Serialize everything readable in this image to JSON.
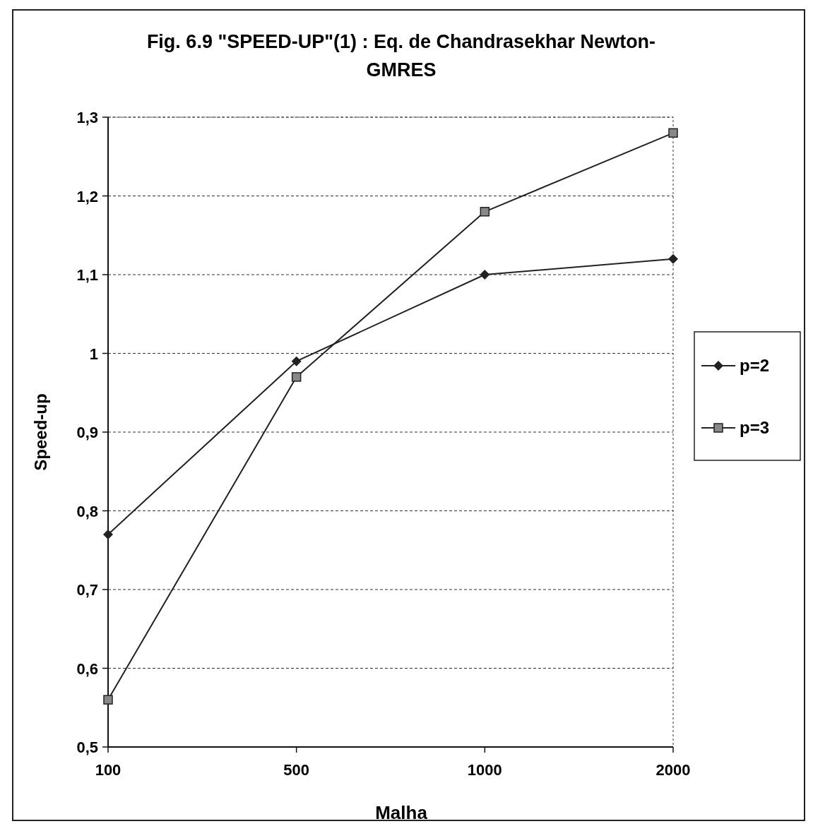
{
  "chart_data": {
    "type": "line",
    "title": "Fig. 6.9  \"SPEED-UP\"(1) :   Eq. de Chandrasekhar  Newton-GMRES",
    "xlabel": "Malha",
    "ylabel": "Speed-up",
    "categories": [
      "100",
      "500",
      "1000",
      "2000"
    ],
    "series": [
      {
        "name": "p=2",
        "color": "#222222",
        "marker": "diamond",
        "values": [
          0.77,
          0.99,
          1.1,
          1.12
        ]
      },
      {
        "name": "p=3",
        "color": "#222222",
        "marker": "square",
        "values": [
          0.56,
          0.97,
          1.18,
          1.28
        ]
      }
    ],
    "ylim": [
      0.5,
      1.3
    ],
    "yticks": [
      {
        "value": 0.5,
        "label": "0,5"
      },
      {
        "value": 0.6,
        "label": "0,6"
      },
      {
        "value": 0.7,
        "label": "0,7"
      },
      {
        "value": 0.8,
        "label": "0,8"
      },
      {
        "value": 0.9,
        "label": "0,9"
      },
      1,
      {
        "value": 1.1,
        "label": "1,1"
      },
      {
        "value": 1.2,
        "label": "1,2"
      },
      {
        "value": 1.3,
        "label": "1,3"
      }
    ],
    "grid": "y",
    "legend": "right",
    "line_style": "solid"
  }
}
